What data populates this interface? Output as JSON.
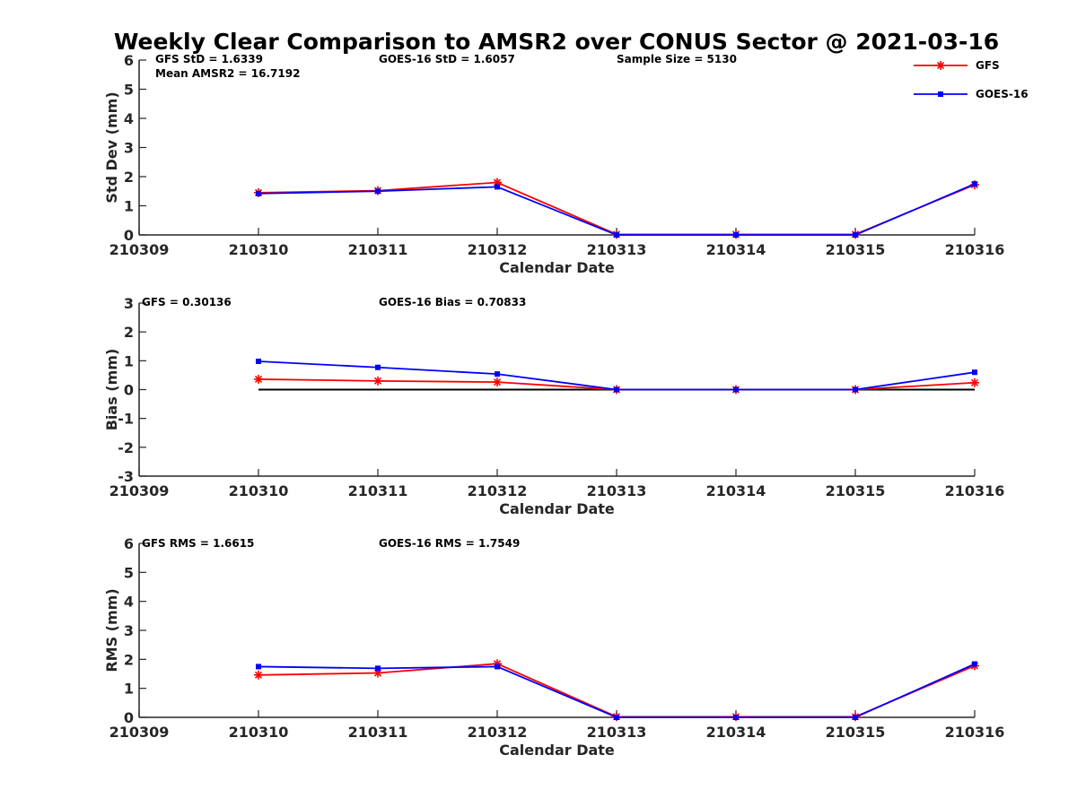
{
  "chart_data": [
    {
      "type": "line",
      "id": "stddev",
      "title": "Weekly Clear Comparison to AMSR2 over CONUS Sector @ 2021-03-16",
      "xlabel": "Calendar Date",
      "ylabel": "Std Dev (mm)",
      "categories": [
        "210309",
        "210310",
        "210311",
        "210312",
        "210313",
        "210314",
        "210315",
        "210316"
      ],
      "ylim": [
        0,
        6
      ],
      "yticks": [
        "0",
        "1",
        "2",
        "3",
        "4",
        "5",
        "6"
      ],
      "grid": false,
      "zero_line": false,
      "series": [
        {
          "name": "GFS",
          "color": "#ff0000",
          "marker": "asterisk",
          "values": [
            null,
            1.45,
            1.52,
            1.8,
            0.02,
            0.02,
            0.02,
            1.72
          ]
        },
        {
          "name": "GOES-16",
          "color": "#0000ff",
          "marker": "square",
          "values": [
            null,
            1.42,
            1.5,
            1.65,
            0.0,
            0.0,
            0.0,
            1.75
          ]
        }
      ],
      "annotations": [
        "GFS StD = 1.6339",
        "GOES-16 StD = 1.6057",
        "Sample Size = 5130",
        "Mean AMSR2 = 16.7192"
      ],
      "legend": {
        "position": "top-right",
        "entries": [
          "GFS",
          "GOES-16"
        ]
      }
    },
    {
      "type": "line",
      "id": "bias",
      "xlabel": "Calendar Date",
      "ylabel": "Bias (mm)",
      "categories": [
        "210309",
        "210310",
        "210311",
        "210312",
        "210313",
        "210314",
        "210315",
        "210316"
      ],
      "ylim": [
        -3,
        3
      ],
      "yticks": [
        "-3",
        "-2",
        "-1",
        "0",
        "1",
        "2",
        "3"
      ],
      "grid": false,
      "zero_line": true,
      "series": [
        {
          "name": "GFS",
          "color": "#ff0000",
          "marker": "asterisk",
          "values": [
            null,
            0.36,
            0.3,
            0.26,
            0.0,
            0.0,
            0.0,
            0.24
          ]
        },
        {
          "name": "GOES-16",
          "color": "#0000ff",
          "marker": "square",
          "values": [
            null,
            0.98,
            0.77,
            0.54,
            0.0,
            0.0,
            0.0,
            0.6
          ]
        }
      ],
      "annotations": [
        "GFS = 0.30136",
        "GOES-16 Bias  = 0.70833"
      ]
    },
    {
      "type": "line",
      "id": "rms",
      "xlabel": "Calendar Date",
      "ylabel": "RMS (mm)",
      "categories": [
        "210309",
        "210310",
        "210311",
        "210312",
        "210313",
        "210314",
        "210315",
        "210316"
      ],
      "ylim": [
        0,
        6
      ],
      "yticks": [
        "0",
        "1",
        "2",
        "3",
        "4",
        "5",
        "6"
      ],
      "grid": false,
      "zero_line": false,
      "series": [
        {
          "name": "GFS",
          "color": "#ff0000",
          "marker": "asterisk",
          "values": [
            null,
            1.46,
            1.53,
            1.85,
            0.02,
            0.02,
            0.02,
            1.78
          ]
        },
        {
          "name": "GOES-16",
          "color": "#0000ff",
          "marker": "square",
          "values": [
            null,
            1.75,
            1.69,
            1.75,
            0.0,
            0.0,
            0.0,
            1.84
          ]
        }
      ],
      "annotations": [
        "GFS RMS = 1.6615",
        "GOES-16 RMS = 1.7549"
      ]
    }
  ]
}
